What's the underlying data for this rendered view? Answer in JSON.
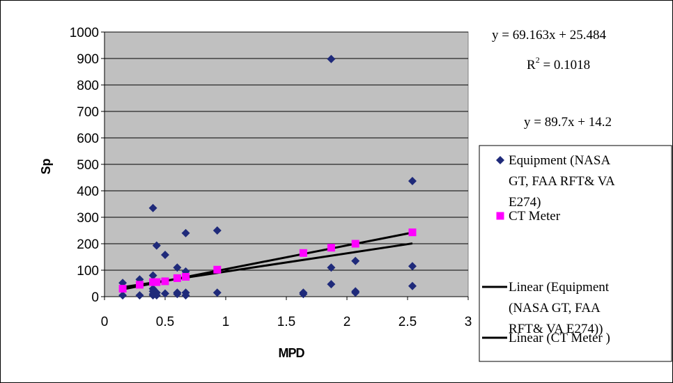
{
  "chart_data": {
    "type": "scatter",
    "xlabel": "MPD",
    "ylabel": "Sp",
    "xlim": [
      0,
      3
    ],
    "ylim": [
      0,
      1000
    ],
    "xticks": [
      "0",
      "0.5",
      "1",
      "1.5",
      "2",
      "2.5",
      "3"
    ],
    "yticks": [
      "0",
      "100",
      "200",
      "300",
      "400",
      "500",
      "600",
      "700",
      "800",
      "900",
      "1000"
    ],
    "grid": "horizontal",
    "legend_position": "right",
    "series": [
      {
        "name": "Equipment (NASA GT, FAA RFT& VA E274)",
        "marker": "diamond",
        "color": "#1f2a7a",
        "points": [
          [
            0.15,
            52
          ],
          [
            0.15,
            5
          ],
          [
            0.29,
            65
          ],
          [
            0.29,
            5
          ],
          [
            0.4,
            335
          ],
          [
            0.4,
            80
          ],
          [
            0.4,
            30
          ],
          [
            0.4,
            20
          ],
          [
            0.4,
            10
          ],
          [
            0.4,
            5
          ],
          [
            0.43,
            193
          ],
          [
            0.43,
            15
          ],
          [
            0.43,
            5
          ],
          [
            0.5,
            158
          ],
          [
            0.5,
            12
          ],
          [
            0.6,
            110
          ],
          [
            0.6,
            15
          ],
          [
            0.6,
            10
          ],
          [
            0.67,
            240
          ],
          [
            0.67,
            95
          ],
          [
            0.67,
            15
          ],
          [
            0.67,
            5
          ],
          [
            0.93,
            250
          ],
          [
            0.93,
            15
          ],
          [
            1.64,
            15
          ],
          [
            1.64,
            10
          ],
          [
            1.87,
            898
          ],
          [
            1.87,
            110
          ],
          [
            1.87,
            47
          ],
          [
            2.07,
            135
          ],
          [
            2.07,
            20
          ],
          [
            2.07,
            15
          ],
          [
            2.54,
            437
          ],
          [
            2.54,
            115
          ],
          [
            2.54,
            40
          ]
        ]
      },
      {
        "name": "CT Meter",
        "marker": "square",
        "color": "#ff00ff",
        "points": [
          [
            0.15,
            30
          ],
          [
            0.29,
            45
          ],
          [
            0.4,
            55
          ],
          [
            0.43,
            55
          ],
          [
            0.5,
            58
          ],
          [
            0.6,
            70
          ],
          [
            0.67,
            75
          ],
          [
            0.93,
            102
          ],
          [
            1.64,
            165
          ],
          [
            1.87,
            185
          ],
          [
            2.07,
            200
          ],
          [
            2.54,
            243
          ]
        ]
      }
    ],
    "trendlines": [
      {
        "name": "Linear (Equipment (NASA GT, FAA RFT& VA E274))",
        "slope": 69.163,
        "intercept": 25.484,
        "color": "#000000"
      },
      {
        "name": "Linear (CT Meter )",
        "slope": 89.7,
        "intercept": 14.2,
        "color": "#000000"
      }
    ],
    "trend_x_range": [
      0.15,
      2.54
    ],
    "annotations": {
      "equation1": "y = 69.163x + 25.484",
      "r2_prefix": "R",
      "r2_sup": "2",
      "r2_value": " = 0.1018",
      "equation2": "y = 89.7x + 14.2"
    },
    "legend": [
      {
        "kind": "marker",
        "marker": "diamond",
        "color": "#1f2a7a",
        "lines": [
          "Equipment (NASA",
          "GT, FAA RFT& VA",
          "E274)"
        ]
      },
      {
        "kind": "marker",
        "marker": "square",
        "color": "#ff00ff",
        "lines": [
          "CT Meter"
        ]
      },
      {
        "kind": "line",
        "color": "#000000",
        "lines": [
          "Linear (Equipment",
          "(NASA GT, FAA",
          "RFT& VA E274))"
        ]
      },
      {
        "kind": "line",
        "color": "#000000",
        "lines": [
          "Linear (CT Meter )"
        ]
      }
    ]
  }
}
